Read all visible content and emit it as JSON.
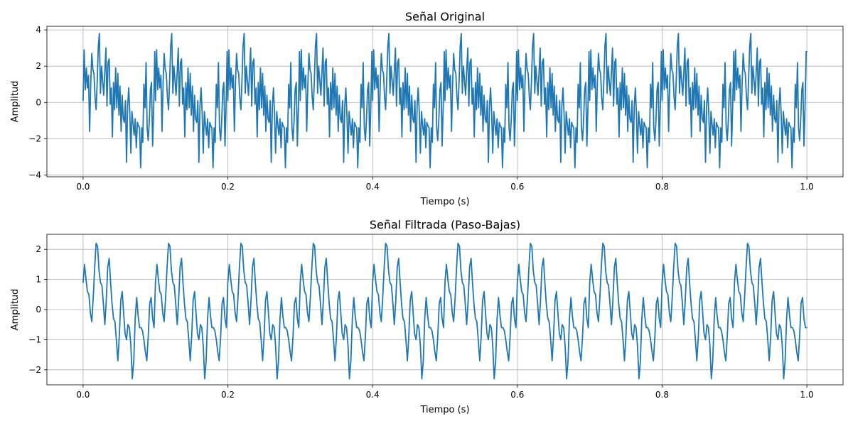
{
  "colors": {
    "series": "#1f77b4",
    "grid": "#b0b0b0",
    "axes": "#000000"
  },
  "chart_data": [
    {
      "type": "line",
      "title": "Señal Original",
      "xlabel": "Tiempo (s)",
      "ylabel": "Amplitud",
      "xlim": [
        -0.05,
        1.05
      ],
      "ylim": [
        -4.1,
        4.2
      ],
      "xticks": [
        0.0,
        0.2,
        0.4,
        0.6,
        0.8,
        1.0
      ],
      "xtick_labels": [
        "0.0",
        "0.2",
        "0.4",
        "0.6",
        "0.8",
        "1.0"
      ],
      "yticks": [
        -4,
        -2,
        0,
        2,
        4
      ],
      "ytick_labels": [
        "−4",
        "−2",
        "0",
        "2",
        "4"
      ],
      "grid": true,
      "series": [
        {
          "x_range": [
            0,
            1
          ],
          "period": 0.1,
          "cycle_x": [
            0.0,
            0.0015,
            0.003,
            0.0045,
            0.006,
            0.0075,
            0.009,
            0.0105,
            0.012,
            0.0135,
            0.015,
            0.0165,
            0.018,
            0.0195,
            0.021,
            0.0225,
            0.024,
            0.0255,
            0.027,
            0.0285,
            0.03,
            0.0315,
            0.033,
            0.0345,
            0.036,
            0.0375,
            0.039,
            0.0405,
            0.042,
            0.0435,
            0.045,
            0.0465,
            0.048,
            0.0495,
            0.051,
            0.0525,
            0.054,
            0.0555,
            0.057,
            0.0585,
            0.06,
            0.0615,
            0.063,
            0.0645,
            0.066,
            0.0675,
            0.069,
            0.0705,
            0.072,
            0.0735,
            0.075,
            0.0765,
            0.078,
            0.0795,
            0.081,
            0.0825,
            0.084,
            0.0855,
            0.087,
            0.0885,
            0.09,
            0.0915,
            0.093,
            0.0945,
            0.096,
            0.0975,
            0.099
          ],
          "cycle_y": [
            0.1,
            2.9,
            0.7,
            1.9,
            0.8,
            1.5,
            -1.6,
            1.0,
            2.7,
            1.8,
            1.6,
            0.3,
            -0.4,
            1.2,
            3.1,
            3.8,
            0.5,
            2.0,
            1.2,
            0.4,
            1.7,
            3.0,
            -0.2,
            2.2,
            2.4,
            -0.1,
            0.8,
            -1.9,
            1.1,
            -0.4,
            1.9,
            -0.3,
            1.6,
            -0.7,
            0.9,
            -1.6,
            0.4,
            -0.9,
            -1.1,
            0.1,
            -3.3,
            -0.2,
            0.8,
            -0.6,
            -2.8,
            -0.5,
            -1.2,
            -1.8,
            -0.9,
            -2.5,
            -1.1,
            -1.3,
            -1.4,
            -3.6,
            -1.4,
            -2.2,
            1.0,
            -0.3,
            2.2,
            -1.4,
            -2.1,
            -1.0,
            0.7,
            1.1,
            -2.4,
            -0.3,
            2.8
          ]
        }
      ]
    },
    {
      "type": "line",
      "title": "Señal Filtrada (Paso-Bajas)",
      "xlabel": "Tiempo (s)",
      "ylabel": "Amplitud",
      "xlim": [
        -0.05,
        1.05
      ],
      "ylim": [
        -2.5,
        2.5
      ],
      "xticks": [
        0.0,
        0.2,
        0.4,
        0.6,
        0.8,
        1.0
      ],
      "xtick_labels": [
        "0.0",
        "0.2",
        "0.4",
        "0.6",
        "0.8",
        "1.0"
      ],
      "yticks": [
        -2,
        -1,
        0,
        1,
        2
      ],
      "ytick_labels": [
        "−2",
        "−1",
        "0",
        "1",
        "2"
      ],
      "grid": true,
      "series": [
        {
          "x_range": [
            0,
            1
          ],
          "period": 0.1,
          "cycle_x": [
            0.0,
            0.002,
            0.004,
            0.006,
            0.008,
            0.01,
            0.012,
            0.014,
            0.016,
            0.018,
            0.02,
            0.022,
            0.024,
            0.026,
            0.028,
            0.03,
            0.032,
            0.034,
            0.036,
            0.038,
            0.04,
            0.042,
            0.044,
            0.046,
            0.048,
            0.05,
            0.052,
            0.054,
            0.056,
            0.058,
            0.06,
            0.062,
            0.064,
            0.066,
            0.068,
            0.07,
            0.072,
            0.074,
            0.076,
            0.078,
            0.08,
            0.082,
            0.084,
            0.086,
            0.088,
            0.09,
            0.092,
            0.094,
            0.096,
            0.098
          ],
          "cycle_y": [
            0.9,
            1.5,
            1.0,
            0.6,
            0.5,
            -0.1,
            -0.4,
            0.4,
            1.4,
            2.2,
            2.1,
            1.3,
            0.9,
            0.8,
            0.2,
            -0.5,
            0.3,
            1.4,
            1.7,
            0.9,
            0.2,
            -0.3,
            -0.4,
            -1.0,
            -1.7,
            -0.9,
            0.3,
            0.6,
            -0.1,
            -0.8,
            -1.0,
            -0.5,
            -0.6,
            -1.2,
            -2.3,
            -1.7,
            -0.3,
            0.4,
            -0.2,
            -0.6,
            -0.6,
            -0.7,
            -1.0,
            -1.4,
            -1.7,
            -0.9,
            0.2,
            0.4,
            -0.3,
            -0.6
          ]
        }
      ]
    }
  ]
}
